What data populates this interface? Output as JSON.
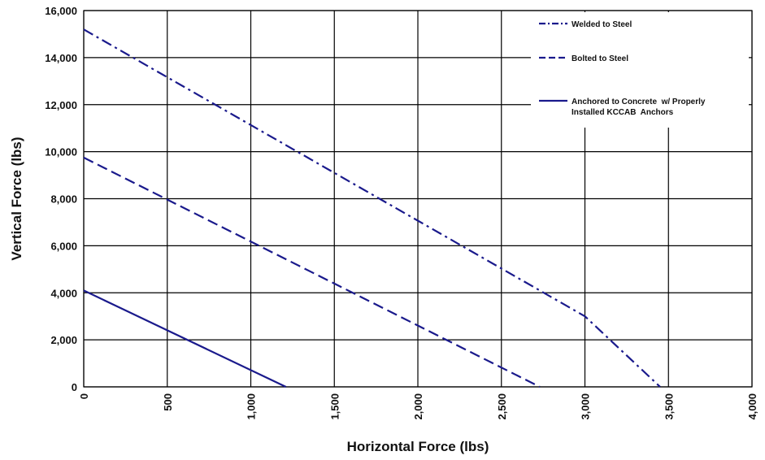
{
  "chart_data": {
    "type": "line",
    "xlabel": "Horizontal Force (lbs)",
    "ylabel": "Vertical Force (lbs)",
    "xlim": [
      0,
      4000
    ],
    "ylim": [
      0,
      16000
    ],
    "x_ticks": [
      0,
      500,
      1000,
      1500,
      2000,
      2500,
      3000,
      3500,
      4000
    ],
    "x_tick_labels": [
      "0",
      "500",
      "1,000",
      "1,500",
      "2,000",
      "2,500",
      "3,000",
      "3,500",
      "4,000"
    ],
    "y_ticks": [
      0,
      2000,
      4000,
      6000,
      8000,
      10000,
      12000,
      14000,
      16000
    ],
    "y_tick_labels": [
      "0",
      "2,000",
      "4,000",
      "6,000",
      "8,000",
      "10,000",
      "12,000",
      "14,000",
      "16,000"
    ],
    "grid": true,
    "legend_position": "top-right",
    "series": [
      {
        "name": "Welded to Steel",
        "line_style": "dash-dot",
        "color": "#1a1a8c",
        "points": [
          [
            0,
            15200
          ],
          [
            3000,
            3000
          ],
          [
            3450,
            0
          ]
        ]
      },
      {
        "name": "Bolted to Steel",
        "line_style": "dashed",
        "color": "#1a1a8c",
        "points": [
          [
            0,
            9750
          ],
          [
            2730,
            0
          ]
        ]
      },
      {
        "name": "Anchored to Concrete  w/ Properly Installed KCCAB  Anchors",
        "legend_lines": [
          "Anchored to Concrete  w/ Properly",
          "Installed KCCAB  Anchors"
        ],
        "line_style": "solid",
        "color": "#1a1a8c",
        "points": [
          [
            0,
            4100
          ],
          [
            1210,
            0
          ]
        ]
      }
    ]
  }
}
